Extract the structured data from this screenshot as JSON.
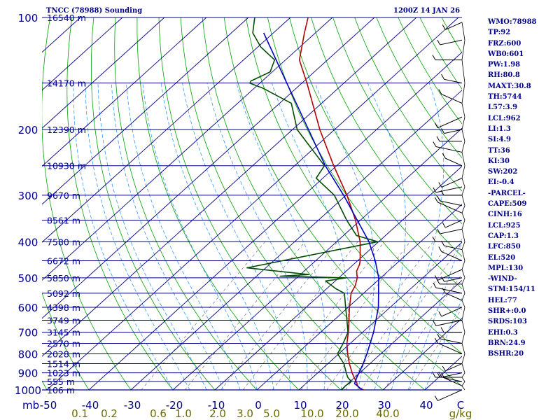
{
  "header": {
    "station": "TNCC (78988) Sounding",
    "time": "1200Z 14 JAN 26"
  },
  "stats": [
    "WMO:78988",
    "TP:92",
    "FRZ:600",
    "WB0:601",
    "PW:1.98",
    "RH:80.8",
    "MAXT:30.8",
    "TH:5744",
    "L57:3.9",
    "LCL:962",
    "LI:1.3",
    "SI:4.9",
    "TT:36",
    "KI:30",
    "SW:202",
    "EI:-0.4",
    "-PARCEL-",
    "CAPE:509",
    "CINH:16",
    "LCL:925",
    "CAP:1.3",
    "LFC:850",
    "EL:520",
    "MPL:130",
    "-WIND-",
    "STM:154/11",
    "HEL:77",
    "SHR+:0.0",
    "SRDS:103",
    "EHI:0.3",
    "BRN:24.9",
    "BSHR:20"
  ],
  "chart_data": {
    "type": "line",
    "title": "",
    "chart_kind": "Skew-T log-P sounding",
    "pressure_ticks": [
      "100",
      "200",
      "300",
      "400",
      "500",
      "600",
      "700",
      "800",
      "900",
      "1000"
    ],
    "pressure_tick_values": [
      100,
      200,
      300,
      400,
      500,
      600,
      700,
      800,
      900,
      1000
    ],
    "p_range": [
      100,
      1000
    ],
    "pressure_unit_label": "mb",
    "temperature_axis": {
      "labels": [
        "-50",
        "-40",
        "-30",
        "-20",
        "-10",
        "0",
        "10",
        "20",
        "30",
        "40",
        "C"
      ],
      "values": [
        -50,
        -40,
        -30,
        -20,
        -10,
        0,
        10,
        20,
        30,
        40
      ]
    },
    "mixing_ratio_axis": {
      "labels": [
        "0.1",
        "0.2",
        "0.6",
        "1.0",
        "2.0",
        "3.0",
        "5.0",
        "10.0",
        "20.0",
        "40.0",
        "g/kg"
      ]
    },
    "heights": [
      {
        "label": "16540 m",
        "p": 100
      },
      {
        "label": "14170 m",
        "p": 150
      },
      {
        "label": "12390 m",
        "p": 200
      },
      {
        "label": "10930 m",
        "p": 250
      },
      {
        "label": "9670 m",
        "p": 300
      },
      {
        "label": "8561 m",
        "p": 350
      },
      {
        "label": "7580 m",
        "p": 400
      },
      {
        "label": "6672 m",
        "p": 450
      },
      {
        "label": "5850 m",
        "p": 500
      },
      {
        "label": "5092 m",
        "p": 550
      },
      {
        "label": "4398 m",
        "p": 600
      },
      {
        "label": "3749 m",
        "p": 650
      },
      {
        "label": "3145 m",
        "p": 700
      },
      {
        "label": "2570 m",
        "p": 750
      },
      {
        "label": "2028 m",
        "p": 800
      },
      {
        "label": "1514 m",
        "p": 850
      },
      {
        "label": "1023 m",
        "p": 900
      },
      {
        "label": "555 m",
        "p": 950
      },
      {
        "label": "106 m",
        "p": 1000
      }
    ],
    "series": [
      {
        "key": "temperature",
        "color": "#b00000",
        "points": [
          {
            "p": 1007,
            "t": 26.5
          },
          {
            "p": 990,
            "t": 24
          },
          {
            "p": 975,
            "t": 22.9
          },
          {
            "p": 950,
            "t": 21.5
          },
          {
            "p": 925,
            "t": 19.8
          },
          {
            "p": 900,
            "t": 18.2
          },
          {
            "p": 850,
            "t": 15.1
          },
          {
            "p": 800,
            "t": 12.1
          },
          {
            "p": 750,
            "t": 9.2
          },
          {
            "p": 700,
            "t": 6.6
          },
          {
            "p": 650,
            "t": 3.6
          },
          {
            "p": 600,
            "t": 0.3
          },
          {
            "p": 575,
            "t": -1.3
          },
          {
            "p": 550,
            "t": -3
          },
          {
            "p": 525,
            "t": -4
          },
          {
            "p": 500,
            "t": -5.6
          },
          {
            "p": 480,
            "t": -7.5
          },
          {
            "p": 460,
            "t": -8.6
          },
          {
            "p": 450,
            "t": -9.4
          },
          {
            "p": 400,
            "t": -14.4
          },
          {
            "p": 350,
            "t": -21.2
          },
          {
            "p": 300,
            "t": -29.8
          },
          {
            "p": 250,
            "t": -40.7
          },
          {
            "p": 200,
            "t": -53.5
          },
          {
            "p": 150,
            "t": -68.8
          },
          {
            "p": 130,
            "t": -76.7
          },
          {
            "p": 110,
            "t": -82.6
          },
          {
            "p": 100,
            "t": -85.8
          }
        ]
      },
      {
        "key": "dewpoint",
        "color": "#004d00",
        "points": [
          {
            "p": 1000,
            "t": 20.2
          },
          {
            "p": 975,
            "t": 20
          },
          {
            "p": 950,
            "t": 20.3
          },
          {
            "p": 925,
            "t": 18.3
          },
          {
            "p": 900,
            "t": 16.8
          },
          {
            "p": 850,
            "t": 13.8
          },
          {
            "p": 800,
            "t": 9.7
          },
          {
            "p": 775,
            "t": 9
          },
          {
            "p": 750,
            "t": 8.3
          },
          {
            "p": 700,
            "t": 6.5
          },
          {
            "p": 650,
            "t": 3.1
          },
          {
            "p": 600,
            "t": -0.6
          },
          {
            "p": 550,
            "t": -4.6
          },
          {
            "p": 535,
            "t": -7.8
          },
          {
            "p": 510,
            "t": -12.3
          },
          {
            "p": 500,
            "t": -8.3
          },
          {
            "p": 495,
            "t": -24.4
          },
          {
            "p": 490,
            "t": -18
          },
          {
            "p": 470,
            "t": -34.5
          },
          {
            "p": 400,
            "t": -10.2
          },
          {
            "p": 385,
            "t": -16.9
          },
          {
            "p": 350,
            "t": -23.3
          },
          {
            "p": 300,
            "t": -32.8
          },
          {
            "p": 270,
            "t": -41.6
          },
          {
            "p": 250,
            "t": -42.9
          },
          {
            "p": 200,
            "t": -58.9
          },
          {
            "p": 170,
            "t": -67.2
          },
          {
            "p": 155,
            "t": -77.8
          },
          {
            "p": 150,
            "t": -82.4
          },
          {
            "p": 148,
            "t": -82.7
          },
          {
            "p": 140,
            "t": -80.5
          },
          {
            "p": 130,
            "t": -82.6
          },
          {
            "p": 120,
            "t": -89.3
          },
          {
            "p": 110,
            "t": -94.9
          },
          {
            "p": 100,
            "t": -98.5
          }
        ]
      },
      {
        "key": "parcel",
        "color": "#0000c0",
        "points": [
          {
            "p": 1000,
            "t": 25.1
          },
          {
            "p": 962,
            "t": 21.6
          },
          {
            "p": 925,
            "t": 20.5
          },
          {
            "p": 850,
            "t": 18.4
          },
          {
            "p": 800,
            "t": 16.7
          },
          {
            "p": 700,
            "t": 12.6
          },
          {
            "p": 600,
            "t": 7.2
          },
          {
            "p": 500,
            "t": -0.5
          },
          {
            "p": 450,
            "t": -5.8
          },
          {
            "p": 400,
            "t": -12.3
          },
          {
            "p": 300,
            "t": -30.6
          },
          {
            "p": 250,
            "t": -42.7
          },
          {
            "p": 200,
            "t": -56.2
          },
          {
            "p": 150,
            "t": -73.6
          },
          {
            "p": 110,
            "t": -92.3
          }
        ]
      }
    ],
    "wind_profile_pressures": [
      103,
      115,
      130,
      150,
      170,
      185,
      200,
      215,
      230,
      250,
      270,
      285,
      300,
      320,
      335,
      350,
      370,
      400,
      420,
      450,
      475,
      500,
      520,
      550,
      575,
      600,
      650,
      700,
      750,
      800,
      850,
      900,
      925,
      950,
      975,
      1000
    ],
    "grid": true,
    "colors": {
      "isobar": "#00008b",
      "isotherm": "#00008b",
      "dry_adiabat": "#00a000",
      "moist_adiabat": "#3399ff",
      "mixing_ratio": "#777777",
      "wind_barb": "#000000",
      "text": "#00008b",
      "tick_text": "#00008b",
      "bottom_text": "#6b6b00"
    }
  }
}
